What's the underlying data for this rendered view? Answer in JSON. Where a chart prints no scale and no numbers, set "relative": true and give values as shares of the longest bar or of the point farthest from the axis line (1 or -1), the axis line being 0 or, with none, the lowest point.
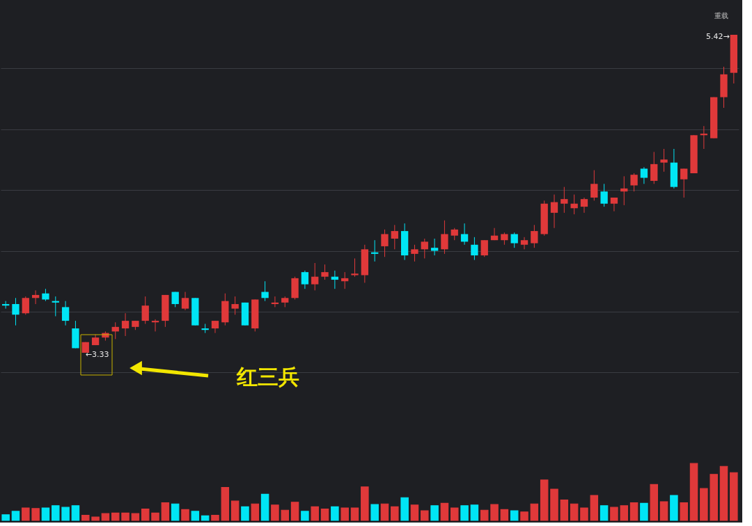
{
  "chart_data": [
    {
      "type": "candlestick",
      "categories": [
        null,
        null,
        null,
        null,
        null,
        null,
        null,
        null,
        null,
        null,
        null,
        null,
        null,
        null,
        null,
        null,
        null,
        null,
        null,
        null,
        null,
        null,
        null,
        null,
        null,
        null,
        null,
        null,
        null,
        null,
        null,
        null,
        null,
        null,
        null,
        null,
        null,
        null,
        null,
        null,
        null,
        null,
        null,
        null,
        null,
        null,
        null,
        null,
        null,
        null,
        null,
        null,
        null,
        null,
        null,
        null,
        null,
        null,
        null,
        null,
        null,
        null,
        null,
        null,
        null,
        null,
        null,
        null,
        null,
        null,
        null,
        null,
        null,
        null
      ],
      "ohlc": [
        [
          3.65,
          3.67,
          3.62,
          3.64
        ],
        [
          3.65,
          3.69,
          3.51,
          3.58
        ],
        [
          3.59,
          3.7,
          3.58,
          3.69
        ],
        [
          3.69,
          3.74,
          3.65,
          3.71
        ],
        [
          3.72,
          3.75,
          3.67,
          3.68
        ],
        [
          3.67,
          3.7,
          3.57,
          3.66
        ],
        [
          3.63,
          3.67,
          3.51,
          3.54
        ],
        [
          3.49,
          3.54,
          3.36,
          3.36
        ],
        [
          3.33,
          3.4,
          3.33,
          3.4
        ],
        [
          3.38,
          3.45,
          3.38,
          3.43
        ],
        [
          3.43,
          3.47,
          3.41,
          3.46
        ],
        [
          3.47,
          3.53,
          3.42,
          3.5
        ],
        [
          3.49,
          3.59,
          3.44,
          3.54
        ],
        [
          3.5,
          3.54,
          3.48,
          3.54
        ],
        [
          3.54,
          3.7,
          3.52,
          3.64
        ],
        [
          3.53,
          3.55,
          3.47,
          3.54
        ],
        [
          3.54,
          3.71,
          3.5,
          3.71
        ],
        [
          3.73,
          3.73,
          3.63,
          3.65
        ],
        [
          3.62,
          3.73,
          3.61,
          3.69
        ],
        [
          3.69,
          3.69,
          3.51,
          3.51
        ],
        [
          3.49,
          3.52,
          3.46,
          3.48
        ],
        [
          3.49,
          3.54,
          3.46,
          3.54
        ],
        [
          3.53,
          3.72,
          3.51,
          3.67
        ],
        [
          3.62,
          3.7,
          3.58,
          3.65
        ],
        [
          3.66,
          3.66,
          3.51,
          3.51
        ],
        [
          3.49,
          3.68,
          3.47,
          3.68
        ],
        [
          3.73,
          3.8,
          3.67,
          3.69
        ],
        [
          3.65,
          3.7,
          3.63,
          3.66
        ],
        [
          3.66,
          3.7,
          3.63,
          3.69
        ],
        [
          3.69,
          3.83,
          3.68,
          3.82
        ],
        [
          3.86,
          3.87,
          3.75,
          3.78
        ],
        [
          3.78,
          3.92,
          3.74,
          3.83
        ],
        [
          3.83,
          3.91,
          3.81,
          3.86
        ],
        [
          3.83,
          3.87,
          3.75,
          3.81
        ],
        [
          3.8,
          3.86,
          3.75,
          3.82
        ],
        [
          3.84,
          3.95,
          3.83,
          3.85
        ],
        [
          3.84,
          4.04,
          3.79,
          4.01
        ],
        [
          3.99,
          4.07,
          3.93,
          3.98
        ],
        [
          4.03,
          4.14,
          3.96,
          4.11
        ],
        [
          4.08,
          4.17,
          4.01,
          4.13
        ],
        [
          4.13,
          4.18,
          3.94,
          3.97
        ],
        [
          3.98,
          4.04,
          3.93,
          4.01
        ],
        [
          4.01,
          4.08,
          3.95,
          4.06
        ],
        [
          4.02,
          4.08,
          3.97,
          4.0
        ],
        [
          4.01,
          4.2,
          3.98,
          4.11
        ],
        [
          4.1,
          4.15,
          4.07,
          4.14
        ],
        [
          4.11,
          4.18,
          4.04,
          4.06
        ],
        [
          4.04,
          4.09,
          3.94,
          3.97
        ],
        [
          3.97,
          4.07,
          3.96,
          4.07
        ],
        [
          4.07,
          4.15,
          4.07,
          4.1
        ],
        [
          4.07,
          4.12,
          4.04,
          4.11
        ],
        [
          4.11,
          4.12,
          4.02,
          4.05
        ],
        [
          4.04,
          4.09,
          4.01,
          4.07
        ],
        [
          4.05,
          4.17,
          4.02,
          4.13
        ],
        [
          4.11,
          4.33,
          4.1,
          4.31
        ],
        [
          4.25,
          4.37,
          4.15,
          4.32
        ],
        [
          4.31,
          4.42,
          4.25,
          4.34
        ],
        [
          4.28,
          4.37,
          4.24,
          4.31
        ],
        [
          4.29,
          4.35,
          4.25,
          4.34
        ],
        [
          4.35,
          4.53,
          4.33,
          4.44
        ],
        [
          4.39,
          4.44,
          4.29,
          4.31
        ],
        [
          4.31,
          4.35,
          4.26,
          4.35
        ],
        [
          4.39,
          4.49,
          4.3,
          4.41
        ],
        [
          4.43,
          4.51,
          4.39,
          4.5
        ],
        [
          4.54,
          4.55,
          4.44,
          4.48
        ],
        [
          4.46,
          4.65,
          4.44,
          4.57
        ],
        [
          4.58,
          4.67,
          4.52,
          4.6
        ],
        [
          4.58,
          4.67,
          4.41,
          4.42
        ],
        [
          4.47,
          4.54,
          4.35,
          4.54
        ],
        [
          4.51,
          4.76,
          4.51,
          4.76
        ],
        [
          4.76,
          4.82,
          4.67,
          4.77
        ],
        [
          4.74,
          5.01,
          4.74,
          5.01
        ],
        [
          5.01,
          5.21,
          4.94,
          5.16
        ],
        [
          5.17,
          5.42,
          5.1,
          5.42
        ]
      ],
      "colors": [
        "#00e5f5",
        "#00e5f5",
        "#e0393a",
        "#e0393a",
        "#00e5f5",
        "#00e5f5",
        "#00e5f5",
        "#00e5f5",
        "#e0393a",
        "#e0393a",
        "#e0393a",
        "#e0393a",
        "#e0393a",
        "#e0393a",
        "#e0393a",
        "#e0393a",
        "#e0393a",
        "#00e5f5",
        "#e0393a",
        "#00e5f5",
        "#00e5f5",
        "#e0393a",
        "#e0393a",
        "#e0393a",
        "#00e5f5",
        "#e0393a",
        "#00e5f5",
        "#e0393a",
        "#e0393a",
        "#e0393a",
        "#00e5f5",
        "#e0393a",
        "#e0393a",
        "#00e5f5",
        "#e0393a",
        "#e0393a",
        "#e0393a",
        "#00e5f5",
        "#e0393a",
        "#e0393a",
        "#00e5f5",
        "#e0393a",
        "#e0393a",
        "#00e5f5",
        "#e0393a",
        "#e0393a",
        "#00e5f5",
        "#00e5f5",
        "#e0393a",
        "#e0393a",
        "#e0393a",
        "#00e5f5",
        "#e0393a",
        "#e0393a",
        "#e0393a",
        "#e0393a",
        "#e0393a",
        "#e0393a",
        "#e0393a",
        "#e0393a",
        "#00e5f5",
        "#e0393a",
        "#e0393a",
        "#e0393a",
        "#00e5f5",
        "#e0393a",
        "#e0393a",
        "#00e5f5",
        "#e0393a",
        "#e0393a",
        "#e0393a",
        "#e0393a",
        "#e0393a",
        "#e0393a"
      ],
      "yticks": [
        {
          "value": 3.2,
          "label": null
        },
        {
          "value": 3.6,
          "label": null
        },
        {
          "value": 4.0,
          "label": null
        },
        {
          "value": 4.4,
          "label": null
        },
        {
          "value": 4.8,
          "label": null
        },
        {
          "value": 5.2,
          "label": null
        }
      ],
      "grid": "y",
      "tick_labels": false,
      "annotations": [
        "红三兵",
        "←3.33",
        "5.42→",
        "重载"
      ]
    },
    {
      "type": "bar",
      "relative": true,
      "categories": [
        null,
        null,
        null,
        null,
        null,
        null,
        null,
        null,
        null,
        null,
        null,
        null,
        null,
        null,
        null,
        null,
        null,
        null,
        null,
        null,
        null,
        null,
        null,
        null,
        null,
        null,
        null,
        null,
        null,
        null,
        null,
        null,
        null,
        null,
        null,
        null,
        null,
        null,
        null,
        null,
        null,
        null,
        null,
        null,
        null,
        null,
        null,
        null,
        null,
        null,
        null,
        null,
        null,
        null,
        null,
        null,
        null,
        null,
        null,
        null,
        null,
        null,
        null,
        null,
        null,
        null,
        null,
        null,
        null,
        null,
        null,
        null,
        null,
        null
      ],
      "values": [
        0.1,
        0.16,
        0.22,
        0.21,
        0.22,
        0.26,
        0.23,
        0.26,
        0.09,
        0.06,
        0.12,
        0.13,
        0.13,
        0.12,
        0.2,
        0.13,
        0.31,
        0.29,
        0.19,
        0.16,
        0.08,
        0.09,
        0.58,
        0.34,
        0.24,
        0.29,
        0.46,
        0.27,
        0.18,
        0.32,
        0.16,
        0.24,
        0.2,
        0.24,
        0.22,
        0.22,
        0.59,
        0.28,
        0.29,
        0.24,
        0.4,
        0.27,
        0.17,
        0.26,
        0.3,
        0.22,
        0.26,
        0.27,
        0.18,
        0.28,
        0.19,
        0.17,
        0.15,
        0.29,
        0.71,
        0.55,
        0.36,
        0.29,
        0.22,
        0.44,
        0.26,
        0.23,
        0.26,
        0.31,
        0.3,
        0.63,
        0.33,
        0.44,
        0.31,
        1,
        0.56,
        0.81,
        0.95,
        0.84
      ],
      "colors": [
        "#00e5f5",
        "#00e5f5",
        "#e0393a",
        "#e0393a",
        "#00e5f5",
        "#00e5f5",
        "#00e5f5",
        "#00e5f5",
        "#e0393a",
        "#e0393a",
        "#e0393a",
        "#e0393a",
        "#e0393a",
        "#e0393a",
        "#e0393a",
        "#e0393a",
        "#e0393a",
        "#00e5f5",
        "#e0393a",
        "#00e5f5",
        "#00e5f5",
        "#e0393a",
        "#e0393a",
        "#e0393a",
        "#00e5f5",
        "#e0393a",
        "#00e5f5",
        "#e0393a",
        "#e0393a",
        "#e0393a",
        "#00e5f5",
        "#e0393a",
        "#e0393a",
        "#00e5f5",
        "#e0393a",
        "#e0393a",
        "#e0393a",
        "#00e5f5",
        "#e0393a",
        "#e0393a",
        "#00e5f5",
        "#e0393a",
        "#e0393a",
        "#00e5f5",
        "#e0393a",
        "#e0393a",
        "#00e5f5",
        "#00e5f5",
        "#e0393a",
        "#e0393a",
        "#e0393a",
        "#00e5f5",
        "#e0393a",
        "#e0393a",
        "#e0393a",
        "#e0393a",
        "#e0393a",
        "#e0393a",
        "#e0393a",
        "#e0393a",
        "#00e5f5",
        "#e0393a",
        "#e0393a",
        "#e0393a",
        "#00e5f5",
        "#e0393a",
        "#e0393a",
        "#00e5f5",
        "#e0393a",
        "#e0393a",
        "#e0393a",
        "#e0393a",
        "#e0393a",
        "#e0393a"
      ]
    }
  ]
}
